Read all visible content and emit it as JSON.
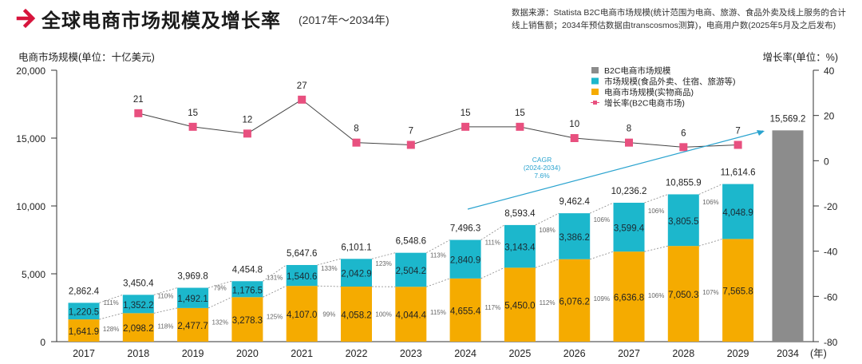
{
  "header": {
    "title": "全球电商市场规模及增长率",
    "subtitle": "(2017年～2034年)",
    "source": "数据来源：Statista B2C电商市场规模(统计范围为电商、旅游、食品外卖及线上服务的合计线上销售额；2034年预估数据由transcosmos测算)，电商用户数(2025年5月及之后发布)",
    "arrow_icon": "right-arrow-icon"
  },
  "chart_data": {
    "type": "bar",
    "title": "全球电商市场规模及增长率",
    "subtitle": "(2017年～2034年)",
    "ylabel": "电商市场规模(单位：十亿美元)",
    "y2label": "增长率(单位：%)",
    "xlabel_suffix": "(年)",
    "ylim": [
      0,
      20000
    ],
    "y2lim": [
      -80,
      40
    ],
    "yticks": [
      "0",
      "5,000",
      "10,000",
      "15,000",
      "20,000"
    ],
    "ytick_values": [
      0,
      5000,
      10000,
      15000,
      20000
    ],
    "y2ticks": [
      "-80",
      "-60",
      "-40",
      "-20",
      "0",
      "20",
      "40"
    ],
    "y2tick_values": [
      -80,
      -60,
      -40,
      -20,
      0,
      20,
      40
    ],
    "categories": [
      "2017",
      "2018",
      "2019",
      "2020",
      "2021",
      "2022",
      "2023",
      "2024",
      "2025",
      "2026",
      "2027",
      "2028",
      "2029",
      "2034"
    ],
    "series": [
      {
        "name": "电商市场规模(实物商品)",
        "type": "stacked-bar",
        "color": "#f5ab00",
        "values": [
          1641.9,
          2098.2,
          2477.7,
          3278.3,
          4107.0,
          4058.2,
          4044.4,
          4655.4,
          5450.0,
          6076.2,
          6636.8,
          7050.3,
          7565.8,
          null
        ],
        "labels": [
          "1,641.9",
          "2,098.2",
          "2,477.7",
          "3,278.3",
          "4,107.0",
          "4,058.2",
          "4,044.4",
          "4,655.4",
          "5,450.0",
          "6,076.2",
          "6,636.8",
          "7,050.3",
          "7,565.8",
          ""
        ]
      },
      {
        "name": "市场规模(食品外卖、住宿、旅游等)",
        "type": "stacked-bar",
        "color": "#1cb7cc",
        "values": [
          1220.5,
          1352.2,
          1492.1,
          1176.5,
          1540.6,
          2042.9,
          2504.2,
          2840.9,
          3143.4,
          3386.2,
          3599.4,
          3805.5,
          4048.9,
          null
        ],
        "labels": [
          "1,220.5",
          "1,352.2",
          "1,492.1",
          "1,176.5",
          "1,540.6",
          "2,042.9",
          "2,504.2",
          "2,840.9",
          "3,143.4",
          "3,386.2",
          "3,599.4",
          "3,805.5",
          "4,048.9",
          ""
        ]
      },
      {
        "name": "B2C电商市场规模",
        "type": "bar",
        "color": "#8c8c8c",
        "values": [
          null,
          null,
          null,
          null,
          null,
          null,
          null,
          null,
          null,
          null,
          null,
          null,
          null,
          15569.2
        ],
        "labels": [
          "",
          "",
          "",
          "",
          "",
          "",
          "",
          "",
          "",
          "",
          "",
          "",
          "",
          "15,569.2"
        ]
      },
      {
        "name": "增长率(B2C电商市场)",
        "type": "line",
        "axis": "right",
        "color": "#e8507f",
        "values": [
          null,
          21,
          15,
          12,
          27,
          8,
          7,
          15,
          15,
          10,
          8,
          6,
          7,
          null
        ],
        "labels": [
          "",
          "21",
          "15",
          "12",
          "27",
          "8",
          "7",
          "15",
          "15",
          "10",
          "8",
          "6",
          "7",
          ""
        ]
      }
    ],
    "totals": {
      "values": [
        2862.4,
        3450.4,
        3969.8,
        4454.8,
        5647.6,
        6101.1,
        6548.6,
        7496.3,
        8593.4,
        9462.4,
        10236.2,
        10855.9,
        11614.6,
        15569.2
      ],
      "labels": [
        "2,862.4",
        "3,450.4",
        "3,969.8",
        "4,454.8",
        "5,647.6",
        "6,101.1",
        "6,548.6",
        "7,496.3",
        "8,593.4",
        "9,462.4",
        "10,236.2",
        "10,855.9",
        "11,614.6",
        "15,569.2"
      ]
    },
    "yoy_service": [
      "111%",
      "110%",
      "79%",
      "131%",
      "133%",
      "123%",
      "113%",
      "111%",
      "108%",
      "106%",
      "106%",
      "106%"
    ],
    "yoy_goods": [
      "128%",
      "118%",
      "132%",
      "125%",
      "99%",
      "100%",
      "115%",
      "117%",
      "112%",
      "109%",
      "106%",
      "107%"
    ],
    "cagr_annotation": {
      "lines": [
        "CAGR",
        "(2024-2034)",
        "7.6%"
      ],
      "color": "#2aa3cf",
      "from": "2024",
      "to": "2034"
    },
    "legend": {
      "position": "top-right",
      "items": [
        {
          "label": "B2C电商市场规模",
          "color": "#8c8c8c",
          "marker": "square"
        },
        {
          "label": "市场规模(食品外卖、住宿、旅游等)",
          "color": "#1cb7cc",
          "marker": "square"
        },
        {
          "label": "电商市场规模(实物商品)",
          "color": "#f5ab00",
          "marker": "square"
        },
        {
          "label": "增长率(B2C电商市场)",
          "color": "#e8507f",
          "marker": "line-square"
        }
      ]
    },
    "grid": false
  }
}
